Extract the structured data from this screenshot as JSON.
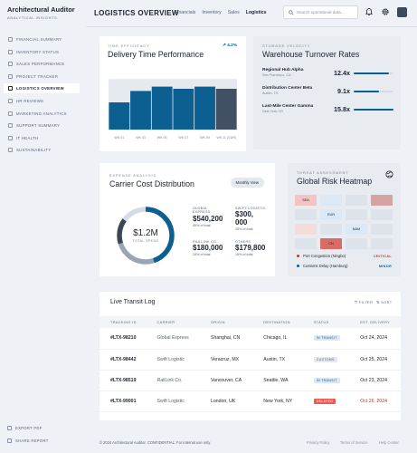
{
  "brand": {
    "title": "Architectural Auditor",
    "subtitle": "ANALYTICAL INSIGHTS"
  },
  "sidebar": {
    "items": [
      {
        "label": "FINANCIAL SUMMARY",
        "icon": "chart-icon",
        "active": false
      },
      {
        "label": "INVENTORY STATUS",
        "icon": "box-icon",
        "active": false
      },
      {
        "label": "SALES PERFORMANCE",
        "icon": "trend-icon",
        "active": false
      },
      {
        "label": "PROJECT TRACKER",
        "icon": "clipboard-icon",
        "active": false
      },
      {
        "label": "LOGISTICS OVERVIEW",
        "icon": "truck-icon",
        "active": true
      },
      {
        "label": "HR REVIEWS",
        "icon": "people-icon",
        "active": false
      },
      {
        "label": "MARKETING ANALYTICS",
        "icon": "megaphone-icon",
        "active": false
      },
      {
        "label": "SUPPORT SUMMARY",
        "icon": "headset-icon",
        "active": false
      },
      {
        "label": "IT HEALTH",
        "icon": "monitor-icon",
        "active": false
      },
      {
        "label": "SUSTAINABILITY",
        "icon": "leaf-icon",
        "active": false
      }
    ],
    "footer": {
      "export": "EXPORT PDF",
      "share": "SHARE REPORT"
    }
  },
  "header": {
    "title": "LOGISTICS OVERVIEW",
    "tabs": [
      {
        "label": "Financials",
        "active": false
      },
      {
        "label": "Inventory",
        "active": false
      },
      {
        "label": "Sales",
        "active": false
      },
      {
        "label": "Logistics",
        "active": true
      }
    ],
    "search_placeholder": "Search operational data..."
  },
  "delivery": {
    "overline": "TIME EFFICIENCY",
    "title": "Delivery Time Performance",
    "trend": "4.2%"
  },
  "chart_data": {
    "type": "bar",
    "categories": [
      "WK 01",
      "WK 03",
      "WK 05",
      "WK 07",
      "WK 09",
      "WK 11"
    ],
    "tick_labels": [
      "WK 01",
      "WK 03",
      "WK 05",
      "WK 07",
      "WK 09",
      "WK 11 (CUR)"
    ],
    "values": [
      50,
      71,
      79,
      75,
      79,
      75
    ],
    "target": 93,
    "ylim": [
      0,
      100
    ],
    "colors": {
      "bar": "#0b5f91",
      "current": "#415063",
      "target": "#e6eaef"
    }
  },
  "warehouse": {
    "overline": "STORAGE VELOCITY",
    "title": "Warehouse Turnover Rates",
    "rows": [
      {
        "name": "Regional Hub Alpha",
        "location": "San Francisco, CA",
        "value": "12.4x",
        "fill": 0.88
      },
      {
        "name": "Distribution Center Beta",
        "location": "Austin, TX",
        "value": "9.1x",
        "fill": 0.64
      },
      {
        "name": "Last-Mile Center Gamma",
        "location": "New York, NY",
        "value": "15.8x",
        "fill": 1.0
      }
    ]
  },
  "carrier": {
    "overline": "EXPENSE ANALYSIS",
    "title": "Carrier Cost Distribution",
    "button": "Monthly View",
    "total_value": "$1.2M",
    "total_label": "TOTAL SPEND",
    "legend": [
      {
        "name": "GLOBAL\nEXPRESS",
        "value": "$540,200",
        "pct": "45% of total",
        "share": 0.45,
        "color": "#0b5f91"
      },
      {
        "name": "SWIFT LOGISTIC",
        "value": "$300,\n000",
        "pct": "25% of total",
        "share": 0.25,
        "color": "#9aa4b2"
      },
      {
        "name": "RAILLINK CO.",
        "value": "$180,000",
        "pct": "15% of total",
        "share": 0.15,
        "color": "#3c4656"
      },
      {
        "name": "OTHERS",
        "value": "$179,800",
        "pct": "15% of total",
        "share": 0.15,
        "color": "#d6dce4"
      }
    ]
  },
  "risk": {
    "overline": "THREAT ASSESSMENT",
    "title": "Global Risk Heatmap",
    "cells": [
      {
        "label": "SEA",
        "color": "#f2c4c2"
      },
      {
        "label": "",
        "color": "#dbe8f5"
      },
      {
        "label": "",
        "color": "#dde3ea"
      },
      {
        "label": "",
        "color": "#d5a4a2"
      },
      {
        "label": "",
        "color": "#dde3ea"
      },
      {
        "label": "EUR",
        "color": "#dbe8f5"
      },
      {
        "label": "",
        "color": "#dde3ea"
      },
      {
        "label": "",
        "color": "#dde3ea"
      },
      {
        "label": "",
        "color": "#f4dcdb"
      },
      {
        "label": "",
        "color": "#dde3ea"
      },
      {
        "label": "NAM",
        "color": "#dbe8f5"
      },
      {
        "label": "",
        "color": "#dde3ea"
      },
      {
        "label": "",
        "color": "#dde3ea"
      },
      {
        "label": "CN",
        "color": "#d96c66"
      },
      {
        "label": "",
        "color": "#dde3ea"
      },
      {
        "label": "",
        "color": "#dde3ea"
      }
    ],
    "alerts": [
      {
        "name": "Port Congestion (Ningbo)",
        "level": "CRITICAL",
        "color": "#c9352c"
      },
      {
        "name": "Customs Delay (Hamburg)",
        "level": "MINOR",
        "color": "#0b5f91"
      }
    ]
  },
  "transit": {
    "title": "Live Transit Log",
    "filter": "FILTER",
    "sort": "SORT",
    "columns": [
      "TRACKING ID",
      "CARRIER",
      "ORIGIN",
      "DESTINATION",
      "STATUS",
      "EST. DELIVERY"
    ],
    "rows": [
      {
        "id": "#LTX-98210",
        "carrier": "Global Express",
        "origin": "Shanghai, CN",
        "destination": "Chicago, IL",
        "status": "IN TRANSIT",
        "status_type": "transit",
        "eta": "Oct 24, 2024",
        "late": false
      },
      {
        "id": "#LTX-98442",
        "carrier": "Swift Logistic",
        "origin": "Veracruz, MX",
        "destination": "Austin, TX",
        "status": "CUSTOMS",
        "status_type": "customs",
        "eta": "Oct 25, 2024",
        "late": false
      },
      {
        "id": "#LTX-98519",
        "carrier": "RailLink Co.",
        "origin": "Vancouver, CA",
        "destination": "Seattle, WA",
        "status": "IN TRANSIT",
        "status_type": "transit",
        "eta": "Oct 23, 2024",
        "late": false
      },
      {
        "id": "#LTX-99001",
        "carrier": "Swift Logistic",
        "origin": "London, UK",
        "destination": "New York, NY",
        "status": "DELAYED",
        "status_type": "delayed",
        "eta": "Oct 26, 2024",
        "late": true
      }
    ]
  },
  "footer": {
    "copyright": "© 2024 Architectural Auditor. CONFIDENTIAL: For internal use only.",
    "links": [
      "Privacy Policy",
      "Terms of Service",
      "Help Center"
    ]
  }
}
